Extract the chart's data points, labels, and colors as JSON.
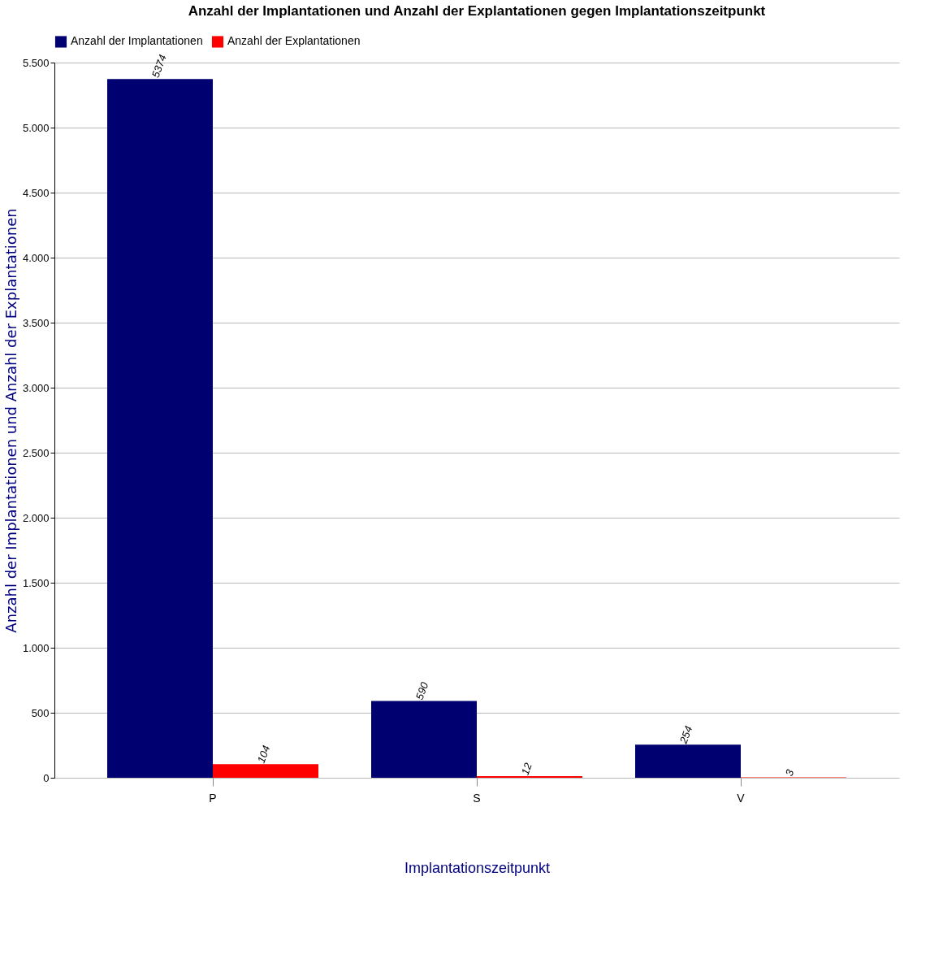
{
  "chart_data": {
    "type": "bar",
    "title": "Anzahl der Implantationen und Anzahl der Explantationen gegen Implantationszeitpunkt",
    "xlabel": "Implantationszeitpunkt",
    "ylabel": "Anzahl der Implantationen und Anzahl der Explantationen",
    "categories": [
      "P",
      "S",
      "V"
    ],
    "series": [
      {
        "name": "Anzahl der Implantationen",
        "color": "#000070",
        "values": [
          5374,
          590,
          254
        ]
      },
      {
        "name": "Anzahl der Explantationen",
        "color": "#ff0000",
        "values": [
          104,
          12,
          3
        ]
      }
    ],
    "ylim": [
      0,
      5500
    ],
    "yticks": [
      0,
      500,
      {
        "value": 1000,
        "label": "1.000"
      },
      {
        "value": 1500,
        "label": "1.500"
      },
      {
        "value": 2000,
        "label": "2.000"
      },
      {
        "value": 2500,
        "label": "2.500"
      },
      {
        "value": 3000,
        "label": "3.000"
      },
      {
        "value": 3500,
        "label": "3.500"
      },
      {
        "value": 4000,
        "label": "4.000"
      },
      {
        "value": 4500,
        "label": "4.500"
      },
      {
        "value": 5000,
        "label": "5.000"
      },
      {
        "value": 5500,
        "label": "5.500"
      }
    ],
    "data_labels": true,
    "grid": "y",
    "legend": "top"
  }
}
